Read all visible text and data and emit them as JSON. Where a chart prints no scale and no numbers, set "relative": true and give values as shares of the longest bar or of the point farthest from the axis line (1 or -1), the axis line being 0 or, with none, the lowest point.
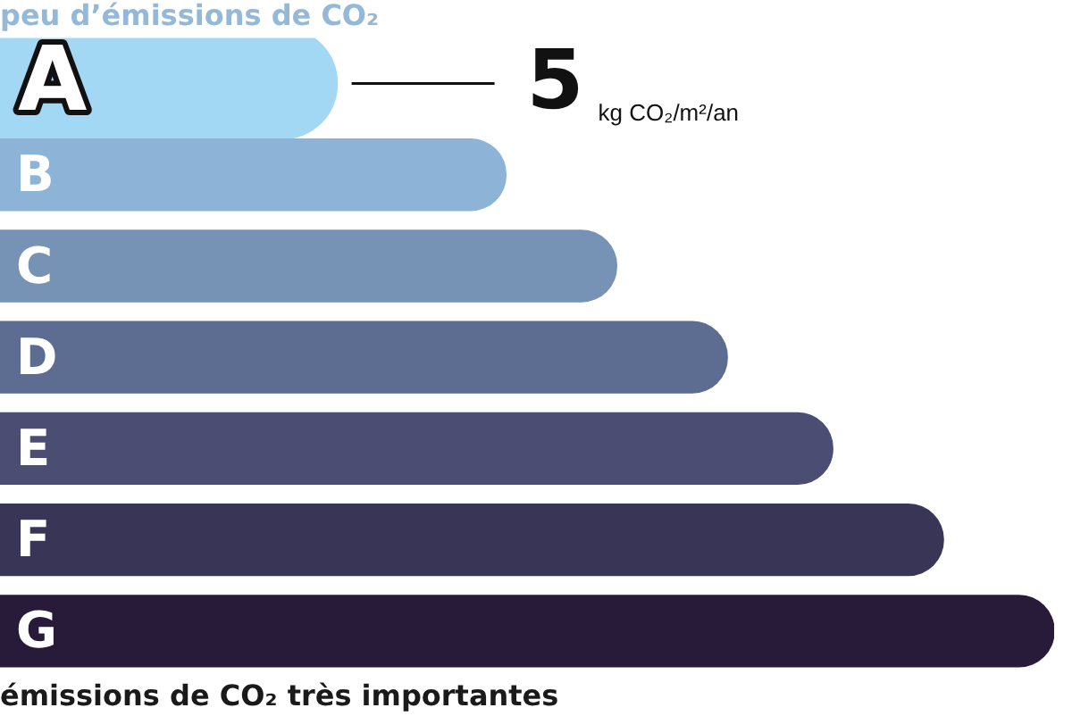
{
  "chart_data": {
    "type": "bar",
    "orientation": "horizontal",
    "relative": true,
    "title": "peu d’émissions de CO₂",
    "categories": [
      "A",
      "B",
      "C",
      "D",
      "E",
      "F",
      "G"
    ],
    "values": [
      0.32,
      0.48,
      0.585,
      0.69,
      0.79,
      0.895,
      1
    ],
    "colors": [
      "#a3d8f5",
      "#8db4d6",
      "#7693b5",
      "#5d6c91",
      "#4b4e72",
      "#383556",
      "#281b39"
    ],
    "annotations": [
      {
        "text": "5",
        "x": 0.32,
        "y": "A"
      },
      "kg CO₂/m²/an",
      "émissions de CO₂ très importantes"
    ],
    "legend": false
  }
}
